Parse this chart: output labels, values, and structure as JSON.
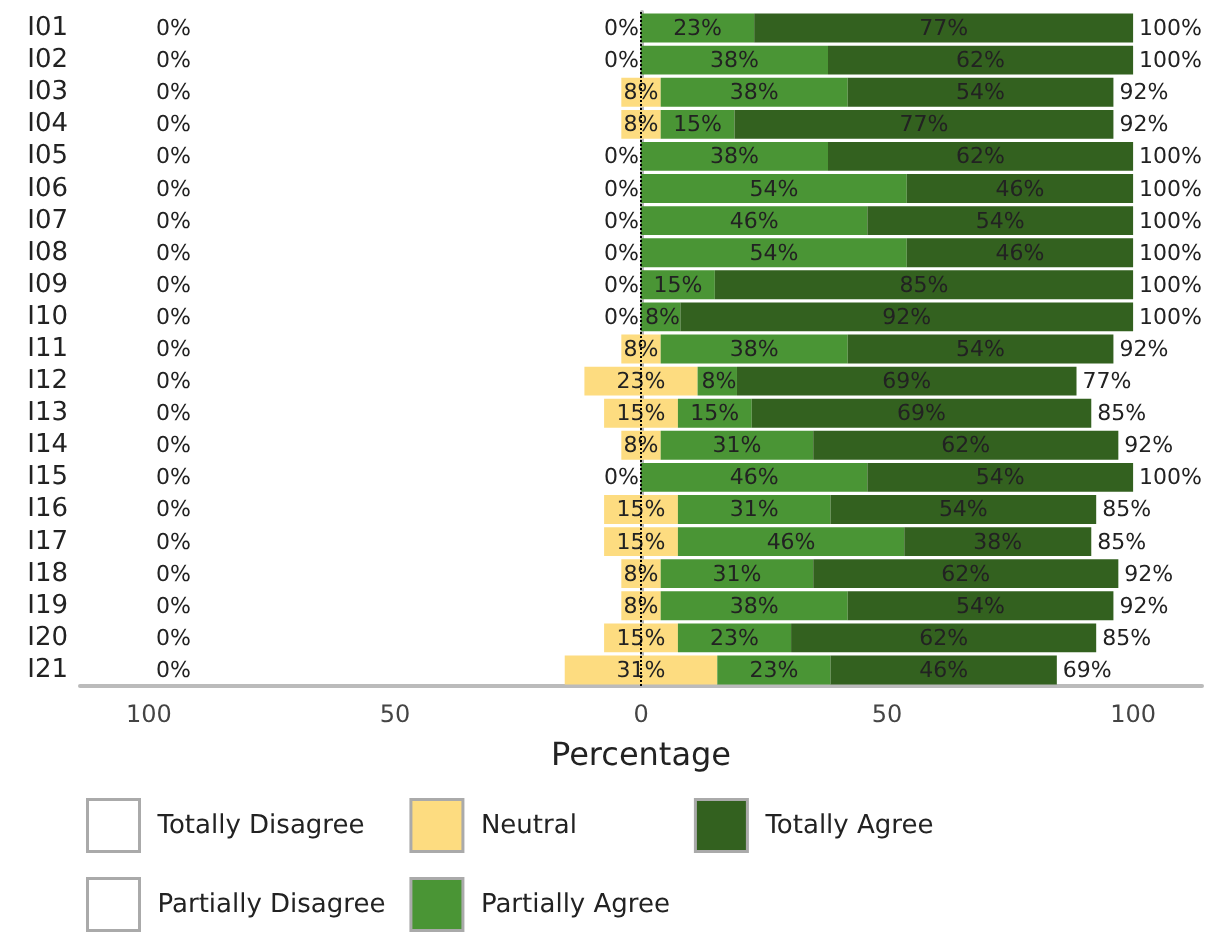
{
  "chart_data": {
    "type": "bar",
    "orientation": "horizontal",
    "xlabel": "Percentage",
    "categories": [
      "I01",
      "I02",
      "I03",
      "I04",
      "I05",
      "I06",
      "I07",
      "I08",
      "I09",
      "I10",
      "I11",
      "I12",
      "I13",
      "I14",
      "I15",
      "I16",
      "I17",
      "I18",
      "I19",
      "I20",
      "I21"
    ],
    "series": [
      {
        "name": "Totally Disagree",
        "color": "#ffffff",
        "values": [
          0,
          0,
          0,
          0,
          0,
          0,
          0,
          0,
          0,
          0,
          0,
          0,
          0,
          0,
          0,
          0,
          0,
          0,
          0,
          0,
          0
        ],
        "value_labels": [
          "0%",
          "0%",
          "0%",
          "0%",
          "0%",
          "0%",
          "0%",
          "0%",
          "0%",
          "0%",
          "0%",
          "0%",
          "0%",
          "0%",
          "0%",
          "0%",
          "0%",
          "0%",
          "0%",
          "0%",
          "0%"
        ]
      },
      {
        "name": "Partially Disagree",
        "color": "#ffffff",
        "values": [
          0,
          0,
          0,
          0,
          0,
          0,
          0,
          0,
          0,
          0,
          0,
          0,
          0,
          0,
          0,
          0,
          0,
          0,
          0,
          0,
          0
        ]
      },
      {
        "name": "Neutral",
        "color": "#fddc80",
        "values": [
          0,
          0,
          8,
          8,
          0,
          0,
          0,
          0,
          0,
          0,
          8,
          23,
          15,
          8,
          0,
          15,
          15,
          8,
          8,
          15,
          31
        ],
        "base": [
          null,
          null,
          -4,
          -4,
          null,
          null,
          null,
          null,
          null,
          null,
          -4,
          -11.5,
          -7.5,
          -4,
          null,
          -7.5,
          -7.5,
          -4,
          -4,
          -7.5,
          -15.5
        ],
        "value_labels": [
          "0%",
          "0%",
          "8%",
          "8%",
          "0%",
          "0%",
          "0%",
          "0%",
          "0%",
          "0%",
          "8%",
          "23%",
          "15%",
          "8%",
          "0%",
          "15%",
          "15%",
          "8%",
          "8%",
          "15%",
          "31%"
        ]
      },
      {
        "name": "Partially Agree",
        "color": "#4a9535",
        "values": [
          23,
          38,
          38,
          15,
          38,
          54,
          46,
          54,
          15,
          8,
          38,
          8,
          15,
          31,
          46,
          31,
          46,
          31,
          38,
          23,
          23
        ],
        "base": [
          0,
          0,
          4,
          4,
          0,
          0,
          0,
          0,
          0,
          0,
          4,
          11.5,
          7.5,
          4,
          0,
          7.5,
          7.5,
          4,
          4,
          7.5,
          15.5
        ],
        "value_labels": [
          "23%",
          "38%",
          "38%",
          "15%",
          "38%",
          "54%",
          "46%",
          "54%",
          "15%",
          "8%",
          "38%",
          "8%",
          "15%",
          "31%",
          "46%",
          "31%",
          "46%",
          "31%",
          "38%",
          "23%",
          "23%"
        ]
      },
      {
        "name": "Totally Agree",
        "color": "#33611f",
        "values": [
          77,
          62,
          54,
          77,
          62,
          46,
          54,
          46,
          85,
          92,
          54,
          69,
          69,
          62,
          54,
          54,
          38,
          62,
          54,
          62,
          46
        ],
        "base": [
          23,
          38,
          42,
          19,
          38,
          54,
          46,
          54,
          15,
          8,
          42,
          19.5,
          22.5,
          35,
          46,
          38.5,
          53.5,
          35,
          42,
          30.5,
          38.5
        ],
        "value_labels": [
          "77%",
          "62%",
          "54%",
          "77%",
          "62%",
          "46%",
          "54%",
          "46%",
          "85%",
          "92%",
          "54%",
          "69%",
          "69%",
          "62%",
          "54%",
          "54%",
          "38%",
          "62%",
          "54%",
          "62%",
          "46%"
        ]
      }
    ],
    "annotations": [
      {
        "text": "100%",
        "x": 100,
        "y": "I01"
      },
      {
        "text": "100%",
        "x": 100,
        "y": "I02"
      },
      {
        "text": "92%",
        "x": 96,
        "y": "I03"
      },
      {
        "text": "92%",
        "x": 96,
        "y": "I04"
      },
      {
        "text": "100%",
        "x": 100,
        "y": "I05"
      },
      {
        "text": "100%",
        "x": 100,
        "y": "I06"
      },
      {
        "text": "100%",
        "x": 100,
        "y": "I07"
      },
      {
        "text": "100%",
        "x": 100,
        "y": "I08"
      },
      {
        "text": "100%",
        "x": 100,
        "y": "I09"
      },
      {
        "text": "100%",
        "x": 100,
        "y": "I10"
      },
      {
        "text": "92%",
        "x": 96,
        "y": "I11"
      },
      {
        "text": "77%",
        "x": 88.5,
        "y": "I12"
      },
      {
        "text": "85%",
        "x": 91.5,
        "y": "I13"
      },
      {
        "text": "92%",
        "x": 97,
        "y": "I14"
      },
      {
        "text": "100%",
        "x": 100,
        "y": "I15"
      },
      {
        "text": "85%",
        "x": 92.5,
        "y": "I16"
      },
      {
        "text": "85%",
        "x": 91.5,
        "y": "I17"
      },
      {
        "text": "92%",
        "x": 97,
        "y": "I18"
      },
      {
        "text": "92%",
        "x": 96,
        "y": "I19"
      },
      {
        "text": "85%",
        "x": 92.5,
        "y": "I20"
      },
      {
        "text": "69%",
        "x": 84.5,
        "y": "I21"
      }
    ],
    "xlim": [
      -114,
      114
    ],
    "xticks": [
      {
        "value": -100,
        "label": "100"
      },
      {
        "value": -50,
        "label": "50"
      },
      0,
      50,
      {
        "value": 100,
        "label": "100"
      }
    ],
    "ref_lines": [
      {
        "axis": "x",
        "value": 0,
        "color": "#000000",
        "line_style": "dotted"
      }
    ],
    "grid": false,
    "legend": "bottom"
  }
}
